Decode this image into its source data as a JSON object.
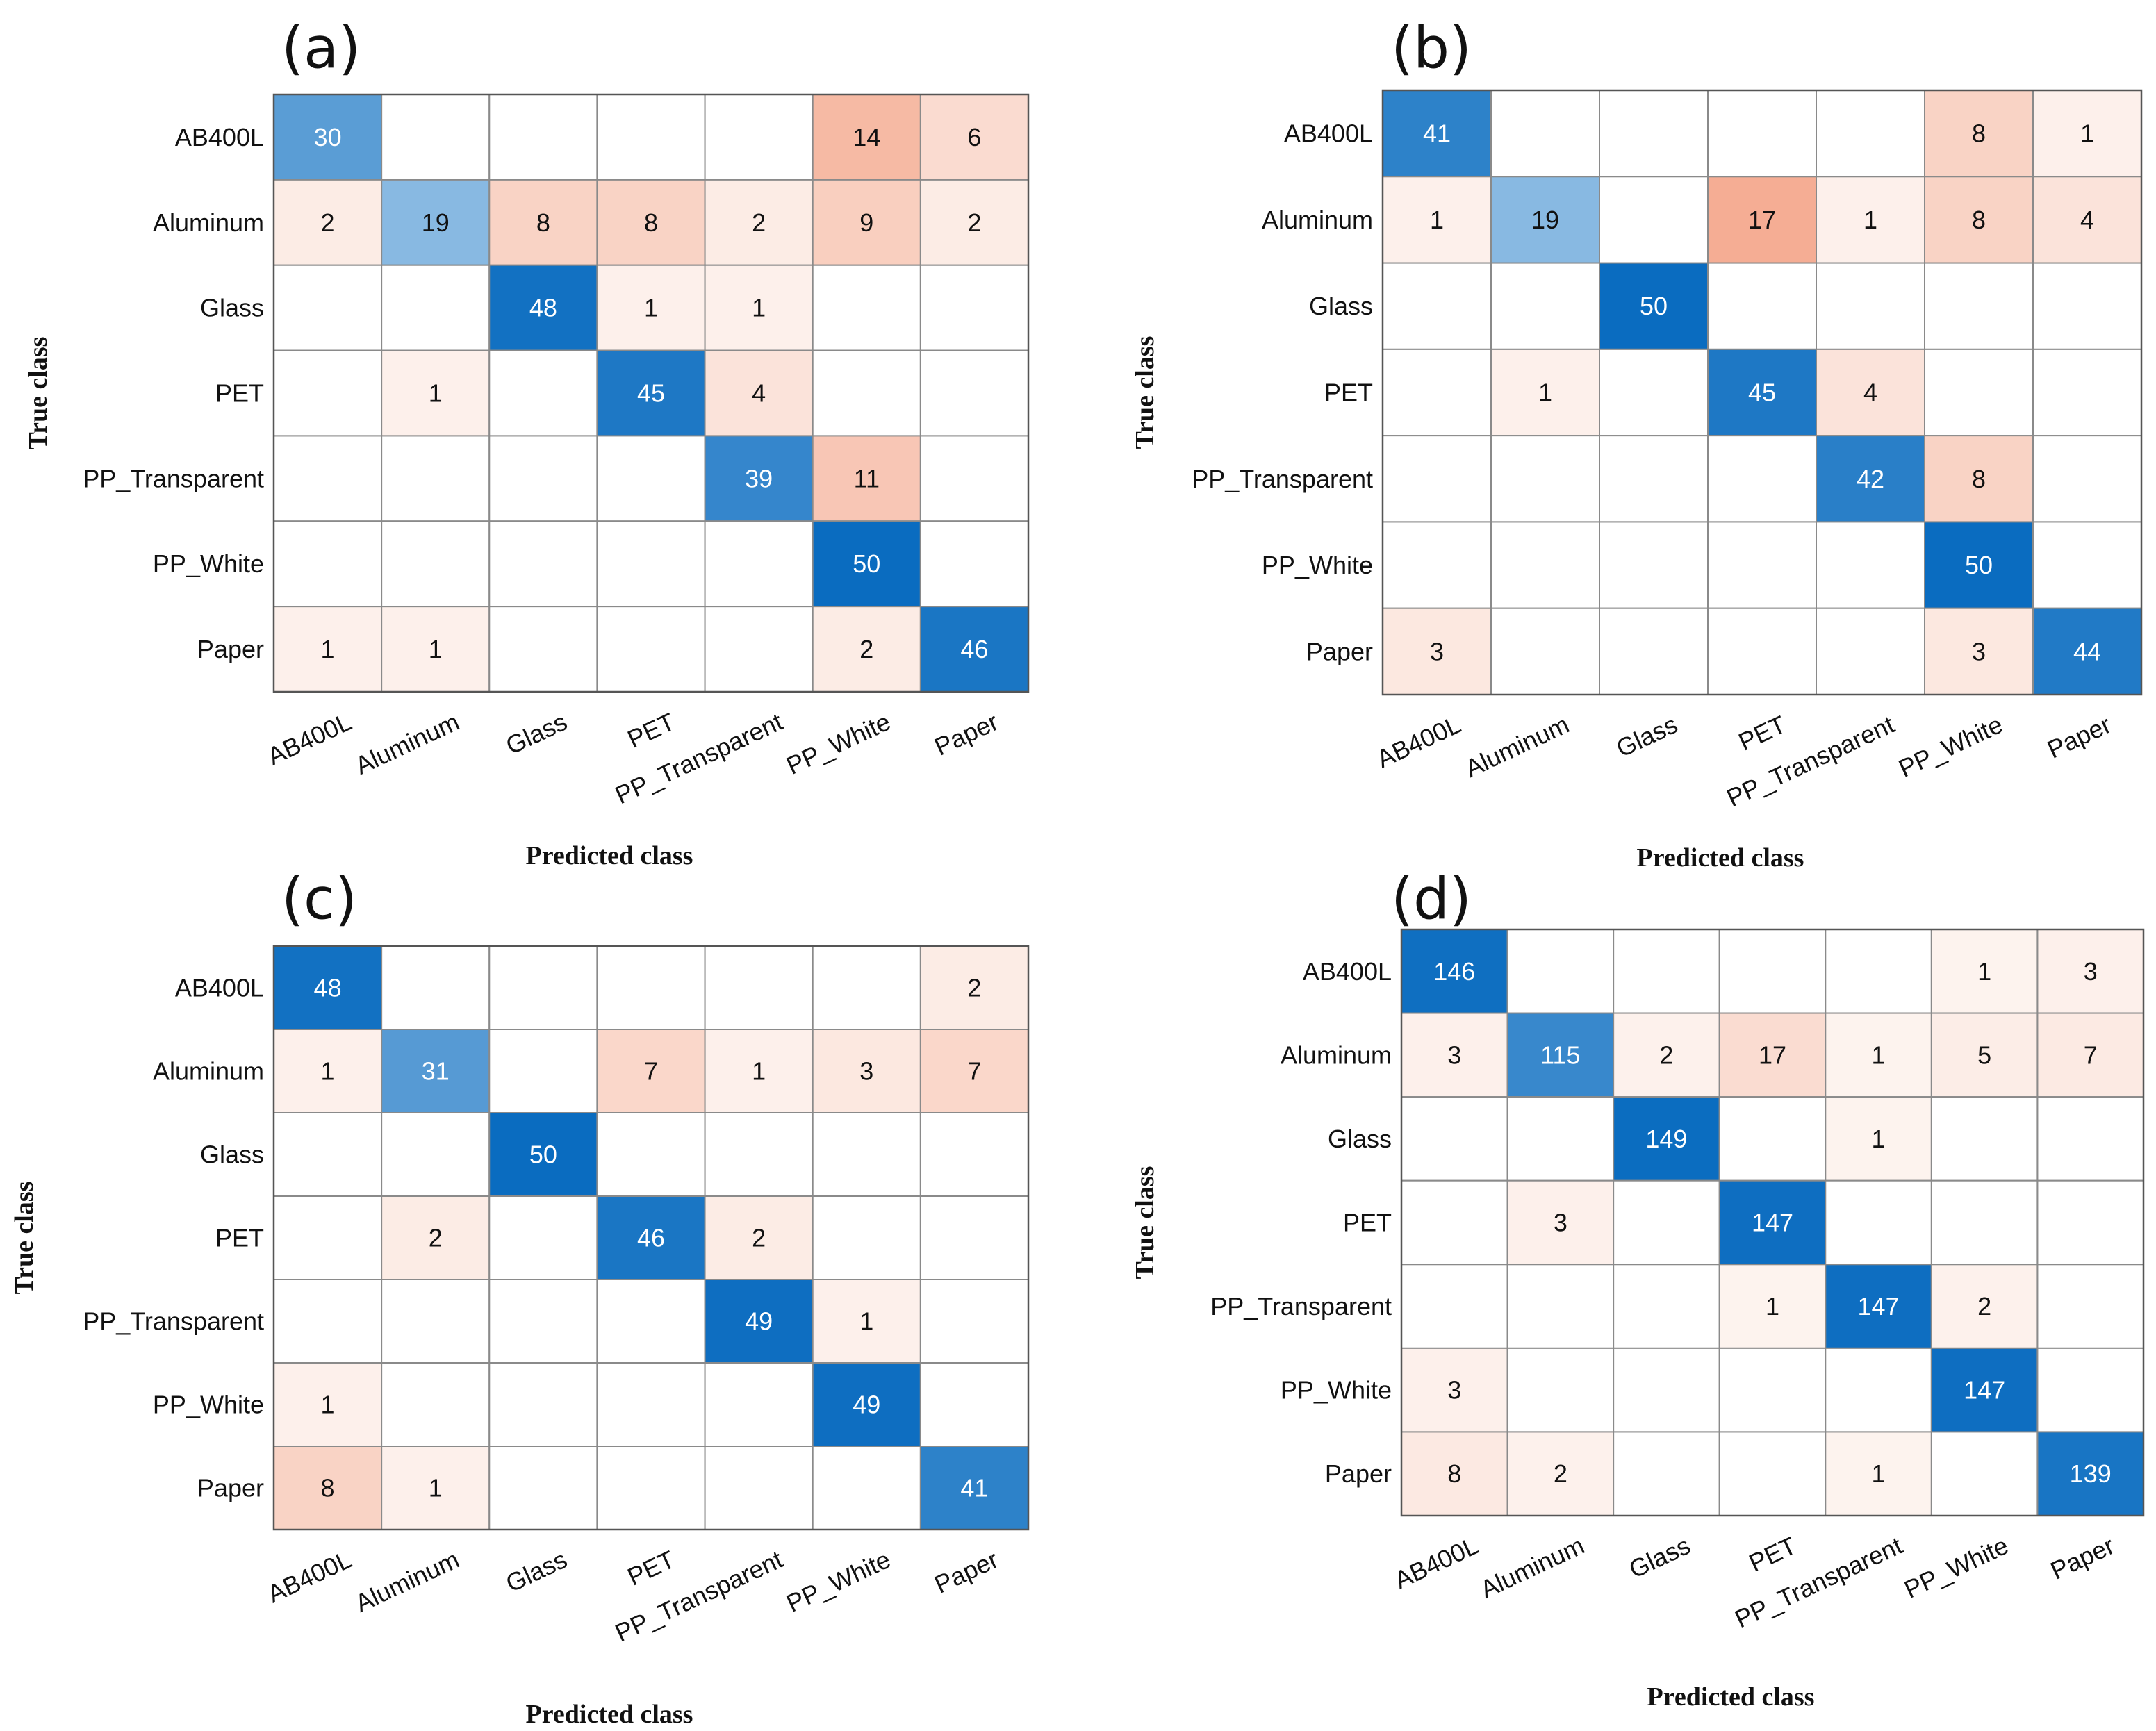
{
  "chart_data": [
    {
      "type": "heatmap",
      "panel": "(a)",
      "xlabel": "Predicted class",
      "ylabel": "True class",
      "row_labels": [
        "AB400L",
        "Aluminum",
        "Glass",
        "PET",
        "PP_Transparent",
        "PP_White",
        "Paper"
      ],
      "col_labels": [
        "AB400L",
        "Aluminum",
        "Glass",
        "PET",
        "PP_Transparent",
        "PP_White",
        "Paper"
      ],
      "matrix": [
        [
          30,
          null,
          null,
          null,
          null,
          14,
          6
        ],
        [
          2,
          19,
          8,
          8,
          2,
          9,
          2
        ],
        [
          null,
          null,
          48,
          1,
          1,
          null,
          null
        ],
        [
          null,
          1,
          null,
          45,
          4,
          null,
          null
        ],
        [
          null,
          null,
          null,
          null,
          39,
          11,
          null
        ],
        [
          null,
          null,
          null,
          null,
          null,
          50,
          null
        ],
        [
          1,
          1,
          null,
          null,
          null,
          2,
          46
        ]
      ]
    },
    {
      "type": "heatmap",
      "panel": "(b)",
      "xlabel": "Predicted class",
      "ylabel": "True class",
      "row_labels": [
        "AB400L",
        "Aluminum",
        "Glass",
        "PET",
        "PP_Transparent",
        "PP_White",
        "Paper"
      ],
      "col_labels": [
        "AB400L",
        "Aluminum",
        "Glass",
        "PET",
        "PP_Transparent",
        "PP_White",
        "Paper"
      ],
      "matrix": [
        [
          41,
          null,
          null,
          null,
          null,
          8,
          1
        ],
        [
          1,
          19,
          null,
          17,
          1,
          8,
          4
        ],
        [
          null,
          null,
          50,
          null,
          null,
          null,
          null
        ],
        [
          null,
          1,
          null,
          45,
          4,
          null,
          null
        ],
        [
          null,
          null,
          null,
          null,
          42,
          8,
          null
        ],
        [
          null,
          null,
          null,
          null,
          null,
          50,
          null
        ],
        [
          3,
          null,
          null,
          null,
          null,
          3,
          44
        ]
      ]
    },
    {
      "type": "heatmap",
      "panel": "(c)",
      "xlabel": "Predicted class",
      "ylabel": "True class",
      "row_labels": [
        "AB400L",
        "Aluminum",
        "Glass",
        "PET",
        "PP_Transparent",
        "PP_White",
        "Paper"
      ],
      "col_labels": [
        "AB400L",
        "Aluminum",
        "Glass",
        "PET",
        "PP_Transparent",
        "PP_White",
        "Paper"
      ],
      "matrix": [
        [
          48,
          null,
          null,
          null,
          null,
          null,
          2
        ],
        [
          1,
          31,
          null,
          7,
          1,
          3,
          7
        ],
        [
          null,
          null,
          50,
          null,
          null,
          null,
          null
        ],
        [
          null,
          2,
          null,
          46,
          2,
          null,
          null
        ],
        [
          null,
          null,
          null,
          null,
          49,
          1,
          null
        ],
        [
          1,
          null,
          null,
          null,
          null,
          49,
          null
        ],
        [
          8,
          1,
          null,
          null,
          null,
          null,
          41
        ]
      ]
    },
    {
      "type": "heatmap",
      "panel": "(d)",
      "xlabel": "Predicted class",
      "ylabel": "True class",
      "row_labels": [
        "AB400L",
        "Aluminum",
        "Glass",
        "PET",
        "PP_Transparent",
        "PP_White",
        "Paper"
      ],
      "col_labels": [
        "AB400L",
        "Aluminum",
        "Glass",
        "PET",
        "PP_Transparent",
        "PP_White",
        "Paper"
      ],
      "matrix": [
        [
          146,
          null,
          null,
          null,
          null,
          1,
          3
        ],
        [
          3,
          115,
          2,
          17,
          1,
          5,
          7
        ],
        [
          null,
          null,
          149,
          null,
          1,
          null,
          null
        ],
        [
          null,
          3,
          null,
          147,
          null,
          null,
          null
        ],
        [
          null,
          null,
          null,
          1,
          147,
          2,
          null
        ],
        [
          3,
          null,
          null,
          null,
          null,
          147,
          null
        ],
        [
          8,
          2,
          null,
          null,
          1,
          null,
          139
        ]
      ]
    }
  ],
  "colors": {
    "diag_dark": "#0a6cc0",
    "diag_light": "#e2f0fa",
    "off_dark": "#f4a488",
    "off_light": "#fdf4f0",
    "empty": "#ffffff"
  }
}
